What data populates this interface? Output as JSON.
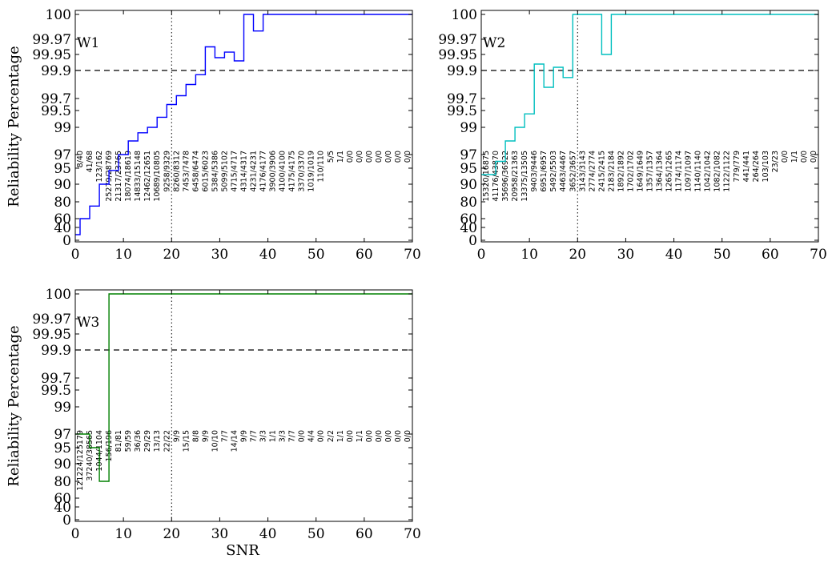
{
  "chart_data": [
    {
      "type": "line",
      "panel": "W1",
      "band_label": "W1",
      "ylabel": "Reliability Percentage",
      "xlabel": "",
      "xlim": [
        0,
        70
      ],
      "xticks": [
        "0",
        "10",
        "20",
        "30",
        "40",
        "50",
        "60",
        "70"
      ],
      "yticks": [
        "0",
        "40",
        "60",
        "80",
        "90",
        "95",
        "97",
        "99",
        "99.5",
        "99.7",
        "99.9",
        "99.95",
        "99.97",
        "100"
      ],
      "reference_line_y": 99.9,
      "reference_line_x": 20,
      "color": "#0000ff",
      "x": [
        0,
        1,
        3,
        5,
        7,
        9,
        11,
        13,
        15,
        17,
        19,
        21,
        23,
        25,
        27,
        29,
        31,
        33,
        35,
        37,
        39,
        70
      ],
      "y": [
        20,
        60,
        75,
        90,
        94.3,
        97,
        98,
        98.6,
        99,
        99.3,
        99.6,
        99.72,
        99.8,
        99.87,
        99.96,
        99.94,
        99.953,
        99.93,
        100,
        99.98,
        100,
        100
      ],
      "annotations": [
        "8/40",
        "41/68",
        "123/162",
        "25279/28769",
        "21317/23765",
        "18074/18619",
        "14833/15148",
        "12462/12651",
        "10689/10805",
        "9258/9329",
        "8260/8312",
        "7453/7478",
        "6458/6474",
        "6015/6023",
        "5384/5386",
        "5099/5102",
        "4715/4717",
        "4314/4317",
        "4231/4231",
        "4176/4177",
        "3900/3906",
        "4100/4100",
        "4175/4175",
        "3370/3370",
        "1019/1019",
        "110/110",
        "5/5",
        "1/1",
        "0/0",
        "0/0",
        "0/0",
        "0/0",
        "0/0",
        "0/0",
        "0/0"
      ]
    },
    {
      "type": "line",
      "panel": "W2",
      "band_label": "W2",
      "ylabel": "",
      "xlabel": "",
      "xlim": [
        0,
        70
      ],
      "xticks": [
        "0",
        "10",
        "20",
        "30",
        "40",
        "50",
        "60",
        "70"
      ],
      "yticks": [
        "0",
        "40",
        "60",
        "80",
        "90",
        "95",
        "97",
        "99",
        "99.5",
        "99.7",
        "99.9",
        "99.95",
        "99.97",
        "100"
      ],
      "reference_line_y": 99.9,
      "reference_line_x": 20,
      "color": "#00bfbf",
      "x": [
        0,
        1,
        3,
        5,
        7,
        9,
        11,
        13,
        15,
        17,
        19,
        21,
        23,
        25,
        27,
        70
      ],
      "y": [
        93,
        93,
        96,
        98,
        99,
        99.4,
        99.92,
        99.78,
        99.91,
        99.85,
        100,
        100,
        100,
        99.95,
        100,
        100
      ],
      "annotations": [
        "15320/16875",
        "41176/43870",
        "35696/36922",
        "20958/21363",
        "13375/13505",
        "9403/9446",
        "6951/6957",
        "5492/5503",
        "4463/4467",
        "3652/3657",
        "3143/3143",
        "2774/2774",
        "2415/2415",
        "2183/2184",
        "1892/1892",
        "1702/1702",
        "1649/1649",
        "1357/1357",
        "1364/1364",
        "1265/1265",
        "1174/1174",
        "1097/1097",
        "1140/1140",
        "1042/1042",
        "1082/1082",
        "1122/1122",
        "779/779",
        "441/441",
        "264/264",
        "103/103",
        "23/23",
        "0/0",
        "1/1",
        "0/0",
        "0/0"
      ]
    },
    {
      "type": "line",
      "panel": "W3",
      "band_label": "W3",
      "ylabel": "Reliability Percentage",
      "xlabel": "SNR",
      "xlim": [
        0,
        70
      ],
      "xticks": [
        "0",
        "10",
        "20",
        "30",
        "40",
        "50",
        "60",
        "70"
      ],
      "yticks": [
        "0",
        "40",
        "60",
        "80",
        "90",
        "95",
        "97",
        "99",
        "99.5",
        "99.7",
        "99.9",
        "99.95",
        "99.97",
        "100"
      ],
      "reference_line_y": 99.9,
      "reference_line_x": 20,
      "color": "#008000",
      "x": [
        0,
        1,
        3,
        5,
        7,
        70
      ],
      "y": [
        97,
        97,
        95,
        80,
        100,
        100
      ],
      "annotations": [
        "121224/125179",
        "37240/38565",
        "1044/1104",
        "156/196",
        "81/81",
        "59/59",
        "36/36",
        "29/29",
        "13/13",
        "22/22",
        "9/9",
        "15/15",
        "8/8",
        "9/9",
        "10/10",
        "7/7",
        "14/14",
        "9/9",
        "7/7",
        "3/3",
        "1/1",
        "3/3",
        "7/7",
        "0/0",
        "4/4",
        "0/0",
        "2/2",
        "1/1",
        "0/0",
        "1/1",
        "0/0",
        "0/0",
        "0/0",
        "0/0",
        "0/0"
      ]
    }
  ]
}
